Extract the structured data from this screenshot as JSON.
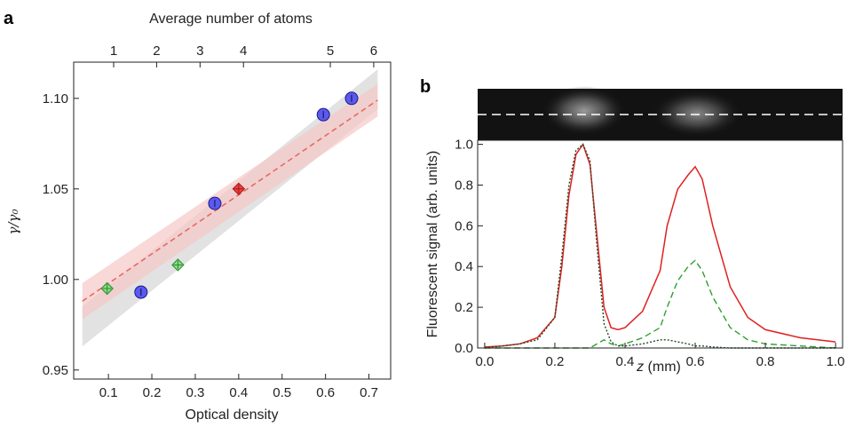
{
  "chart_data": [
    {
      "type": "scatter",
      "panel_label": "a",
      "xlabel": "Optical density",
      "ylabel": "γ/γ₀",
      "x2label": "Average number of atoms",
      "xlim": [
        0.02,
        0.75
      ],
      "ylim": [
        0.945,
        1.12
      ],
      "xticks": [
        0.1,
        0.2,
        0.3,
        0.4,
        0.5,
        0.6,
        0.7
      ],
      "xtick_labels": [
        "0.1",
        "0.2",
        "0.3",
        "0.4",
        "0.5",
        "0.6",
        "0.7"
      ],
      "yticks": [
        0.95,
        1.0,
        1.05,
        1.1
      ],
      "ytick_labels": [
        "0.95",
        "1.00",
        "1.05",
        "1.10"
      ],
      "x2ticks": [
        {
          "od": 0.112,
          "label": "1"
        },
        {
          "od": 0.211,
          "label": "2"
        },
        {
          "od": 0.311,
          "label": "3"
        },
        {
          "od": 0.411,
          "label": "4"
        },
        {
          "od": 0.611,
          "label": "5"
        },
        {
          "od": 0.711,
          "label": "6"
        }
      ],
      "colors": {
        "blue": "#5a5af0",
        "red": "#f04040",
        "green": "#88dd88",
        "fit": "#e8645a",
        "band_red": "#f7c8c8",
        "band_gray": "#d8d8d8"
      },
      "series": [
        {
          "marker": "circle",
          "color": "blue",
          "points": [
            {
              "x": 0.175,
              "y": 0.993
            },
            {
              "x": 0.345,
              "y": 1.042
            },
            {
              "x": 0.595,
              "y": 1.091
            },
            {
              "x": 0.66,
              "y": 1.1
            }
          ]
        },
        {
          "marker": "diamond",
          "color": "red",
          "points": [
            {
              "x": 0.4,
              "y": 1.05
            }
          ]
        },
        {
          "marker": "diamond",
          "color": "green",
          "points": [
            {
              "x": 0.097,
              "y": 0.995
            },
            {
              "x": 0.26,
              "y": 1.008
            }
          ]
        }
      ],
      "fit_line": {
        "x": [
          0.04,
          0.72
        ],
        "y": [
          0.988,
          1.099
        ]
      },
      "band_red": {
        "x": [
          0.04,
          0.72
        ],
        "lower": [
          0.978,
          1.09
        ],
        "upper": [
          0.998,
          1.108
        ]
      },
      "band_gray": {
        "x": [
          0.04,
          0.72
        ],
        "lower": [
          0.963,
          1.094
        ],
        "upper": [
          0.985,
          1.116
        ]
      }
    },
    {
      "type": "line",
      "panel_label": "b",
      "xlabel_var": "z",
      "xlabel_unit": " (mm)",
      "ylabel": "Fluorescent signal (arb. units)",
      "xlim": [
        -0.02,
        1.02
      ],
      "ylim": [
        0.0,
        1.02
      ],
      "xticks": [
        0.0,
        0.2,
        0.4,
        0.6,
        0.8,
        1.0
      ],
      "xtick_labels": [
        "0.0",
        "0.2",
        "0.4",
        "0.6",
        "0.8",
        "1.0"
      ],
      "yticks": [
        0.0,
        0.2,
        0.4,
        0.6,
        0.8,
        1.0
      ],
      "ytick_labels": [
        "0.0",
        "0.2",
        "0.4",
        "0.6",
        "0.8",
        "1.0"
      ],
      "colors": {
        "red": "#e02020",
        "green": "#2fa02f",
        "dark": "#1f4d2a"
      },
      "x": [
        0.0,
        0.05,
        0.1,
        0.15,
        0.2,
        0.22,
        0.24,
        0.26,
        0.28,
        0.3,
        0.32,
        0.34,
        0.36,
        0.38,
        0.4,
        0.45,
        0.5,
        0.52,
        0.55,
        0.58,
        0.6,
        0.62,
        0.65,
        0.7,
        0.75,
        0.8,
        0.9,
        1.0
      ],
      "series": [
        {
          "style": "solid",
          "color": "red",
          "y": [
            0.005,
            0.01,
            0.02,
            0.05,
            0.15,
            0.4,
            0.75,
            0.95,
            1.0,
            0.9,
            0.55,
            0.2,
            0.1,
            0.09,
            0.1,
            0.18,
            0.38,
            0.6,
            0.78,
            0.85,
            0.89,
            0.83,
            0.6,
            0.3,
            0.15,
            0.09,
            0.05,
            0.03
          ]
        },
        {
          "style": "dashed",
          "color": "green",
          "y": [
            0.0,
            0.0,
            0.0,
            0.0,
            0.0,
            0.0,
            0.0,
            0.0,
            0.0,
            0.0,
            0.02,
            0.04,
            0.02,
            0.01,
            0.02,
            0.05,
            0.1,
            0.2,
            0.33,
            0.4,
            0.43,
            0.38,
            0.25,
            0.1,
            0.04,
            0.02,
            0.01,
            0.0
          ]
        },
        {
          "style": "dotted",
          "color": "dark",
          "y": [
            0.0,
            0.01,
            0.02,
            0.04,
            0.15,
            0.45,
            0.8,
            0.97,
            1.0,
            0.92,
            0.5,
            0.12,
            0.03,
            0.01,
            0.01,
            0.02,
            0.04,
            0.04,
            0.03,
            0.02,
            0.01,
            0.01,
            0.005,
            0.0,
            0.0,
            0.0,
            0.0,
            0.0
          ]
        }
      ]
    }
  ]
}
